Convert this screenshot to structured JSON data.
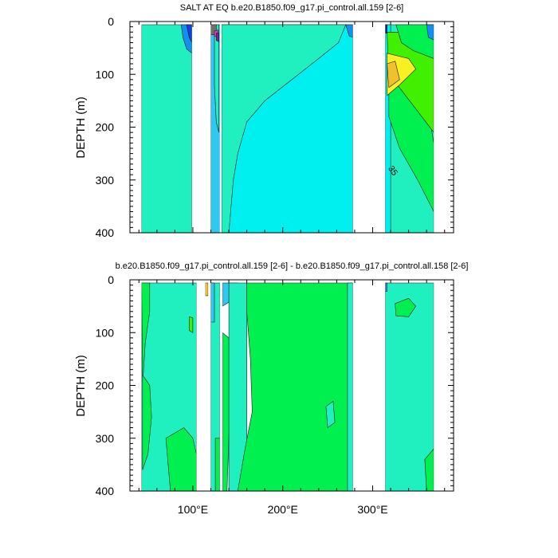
{
  "colors": {
    "cyan": "#00f0f0",
    "aquamarine": "#20f0c0",
    "green": "#00f050",
    "brightgreen": "#40f000",
    "yellow": "#f8f020",
    "orange": "#f0c030",
    "sky": "#30c8f0",
    "midblue": "#1090f0",
    "blue": "#1040e8",
    "navy": "#101090",
    "purple": "#8020a0",
    "pink": "#e040c0",
    "gray": "#707070",
    "brown": "#c08020",
    "blank": "#ffffff"
  },
  "chart_data": [
    {
      "type": "contour",
      "title": "SALT AT EQ b.e20.B1850.f09_g17.pi_control.all.159 [2-6]",
      "ylabel": "DEPTH (m)",
      "xlabel": "",
      "xlim": [
        30,
        390
      ],
      "ylim": [
        0,
        400
      ],
      "y_reversed": true,
      "yticks": [
        0,
        100,
        200,
        300,
        400
      ],
      "ytick_labels": [
        "0",
        "100",
        "200",
        "300",
        "400"
      ],
      "xticks": [
        100,
        200,
        300
      ],
      "xtick_labels": [],
      "data_extent_x": [
        43,
        368
      ],
      "land_gaps_x": [
        [
          99,
          120
        ],
        [
          130,
          132
        ],
        [
          278,
          314
        ]
      ],
      "contour_labels": [
        {
          "text": "35",
          "x": 317,
          "depth": 278
        }
      ],
      "regions": [
        {
          "color": "aquamarine",
          "depth_pts": [
            [
              43,
              6
            ],
            [
              99,
              6
            ],
            [
              99,
              400
            ],
            [
              43,
              400
            ]
          ]
        },
        {
          "color": "midblue",
          "depth_pts": [
            [
              87,
              6
            ],
            [
              99,
              6
            ],
            [
              99,
              60
            ],
            [
              93,
              52
            ],
            [
              89,
              30
            ]
          ]
        },
        {
          "color": "blue",
          "depth_pts": [
            [
              93,
              6
            ],
            [
              99,
              6
            ],
            [
              99,
              40
            ],
            [
              96,
              30
            ]
          ]
        },
        {
          "color": "sky",
          "depth_pts": [
            [
              120,
              6
            ],
            [
              132,
              6
            ],
            [
              132,
              400
            ],
            [
              120,
              400
            ]
          ]
        },
        {
          "color": "aquamarine",
          "depth_pts": [
            [
              124,
              6
            ],
            [
              129,
              6
            ],
            [
              129,
              210
            ],
            [
              126,
              190
            ],
            [
              124,
              120
            ]
          ]
        },
        {
          "color": "gray",
          "depth_pts": [
            [
              120,
              6
            ],
            [
              126,
              6
            ],
            [
              126,
              25
            ],
            [
              120,
              25
            ]
          ]
        },
        {
          "color": "pink",
          "depth_pts": [
            [
              124,
              18
            ],
            [
              128,
              16
            ],
            [
              128,
              30
            ],
            [
              124,
              28
            ]
          ]
        },
        {
          "color": "purple",
          "depth_pts": [
            [
              126,
              22
            ],
            [
              129,
              22
            ],
            [
              129,
              38
            ],
            [
              126,
              36
            ]
          ]
        },
        {
          "color": "cyan",
          "depth_pts": [
            [
              132,
              6
            ],
            [
              278,
              6
            ],
            [
              278,
              400
            ],
            [
              132,
              400
            ]
          ]
        },
        {
          "color": "aquamarine",
          "depth_pts": [
            [
              132,
              6
            ],
            [
              270,
              6
            ],
            [
              262,
              40
            ],
            [
              240,
              70
            ],
            [
              210,
              110
            ],
            [
              180,
              150
            ],
            [
              160,
              190
            ],
            [
              150,
              250
            ],
            [
              145,
              300
            ],
            [
              140,
              400
            ],
            [
              132,
              400
            ]
          ]
        },
        {
          "color": "midblue",
          "depth_pts": [
            [
              270,
              6
            ],
            [
              278,
              6
            ],
            [
              278,
              30
            ],
            [
              274,
              28
            ]
          ]
        },
        {
          "color": "aquamarine",
          "depth_pts": [
            [
              314,
              6
            ],
            [
              368,
              6
            ],
            [
              368,
              400
            ],
            [
              314,
              400
            ]
          ]
        },
        {
          "color": "cyan",
          "depth_pts": [
            [
              314,
              6
            ],
            [
              320,
              6
            ],
            [
              320,
              400
            ],
            [
              314,
              400
            ]
          ]
        },
        {
          "color": "green",
          "depth_pts": [
            [
              318,
              60
            ],
            [
              340,
              90
            ],
            [
              360,
              150
            ],
            [
              368,
              230
            ],
            [
              368,
              360
            ],
            [
              350,
              300
            ],
            [
              330,
              240
            ],
            [
              318,
              180
            ]
          ]
        },
        {
          "color": "brightgreen",
          "depth_pts": [
            [
              316,
              20
            ],
            [
              368,
              20
            ],
            [
              368,
              210
            ],
            [
              350,
              170
            ],
            [
              332,
              130
            ],
            [
              318,
              100
            ]
          ]
        },
        {
          "color": "yellow",
          "depth_pts": [
            [
              316,
              60
            ],
            [
              340,
              70
            ],
            [
              348,
              90
            ],
            [
              330,
              120
            ],
            [
              316,
              140
            ]
          ]
        },
        {
          "color": "orange",
          "depth_pts": [
            [
              316,
              80
            ],
            [
              325,
              75
            ],
            [
              330,
              110
            ],
            [
              318,
              125
            ]
          ]
        },
        {
          "color": "green",
          "depth_pts": [
            [
              326,
              6
            ],
            [
              368,
              6
            ],
            [
              368,
              70
            ],
            [
              345,
              55
            ],
            [
              332,
              40
            ]
          ]
        },
        {
          "color": "midblue",
          "depth_pts": [
            [
              360,
              6
            ],
            [
              368,
              6
            ],
            [
              368,
              35
            ],
            [
              362,
              30
            ]
          ]
        },
        {
          "color": "navy",
          "depth_pts": [
            [
              314,
              6
            ],
            [
              316,
              6
            ],
            [
              316,
              22
            ],
            [
              314,
              22
            ]
          ]
        }
      ]
    },
    {
      "type": "contour",
      "title": "b.e20.B1850.f09_g17.pi_control.all.159 [2-6] - b.e20.B1850.f09_g17.pi_control.all.158 [2-6]",
      "ylabel": "DEPTH (m)",
      "xlabel": "",
      "xlim": [
        30,
        390
      ],
      "ylim": [
        0,
        400
      ],
      "y_reversed": true,
      "yticks": [
        0,
        100,
        200,
        300,
        400
      ],
      "ytick_labels": [
        "0",
        "100",
        "200",
        "300",
        "400"
      ],
      "xticks": [
        100,
        200,
        300
      ],
      "xtick_labels": [
        "100°E",
        "200°E",
        "300°E"
      ],
      "data_extent_x": [
        43,
        368
      ],
      "land_gaps_x": [
        [
          104,
          114
        ],
        [
          117,
          120
        ],
        [
          130,
          133
        ],
        [
          278,
          314
        ]
      ],
      "contour_labels": [],
      "regions": [
        {
          "color": "aquamarine",
          "depth_pts": [
            [
              43,
              6
            ],
            [
              104,
              6
            ],
            [
              104,
              400
            ],
            [
              43,
              400
            ]
          ]
        },
        {
          "color": "green",
          "depth_pts": [
            [
              43,
              6
            ],
            [
              52,
              6
            ],
            [
              52,
              60
            ],
            [
              47,
              120
            ],
            [
              44,
              200
            ]
          ]
        },
        {
          "color": "green",
          "depth_pts": [
            [
              44,
              180
            ],
            [
              52,
              200
            ],
            [
              54,
              260
            ],
            [
              50,
              330
            ],
            [
              44,
              360
            ]
          ]
        },
        {
          "color": "green",
          "depth_pts": [
            [
              70,
              300
            ],
            [
              90,
              280
            ],
            [
              100,
              300
            ],
            [
              104,
              330
            ],
            [
              104,
              400
            ],
            [
              75,
              400
            ]
          ]
        },
        {
          "color": "brightgreen",
          "depth_pts": [
            [
              96,
              70
            ],
            [
              100,
              72
            ],
            [
              100,
              100
            ],
            [
              96,
              96
            ]
          ]
        },
        {
          "color": "orange",
          "depth_pts": [
            [
              114,
              6
            ],
            [
              117,
              6
            ],
            [
              117,
              30
            ],
            [
              114,
              30
            ]
          ]
        },
        {
          "color": "aquamarine",
          "depth_pts": [
            [
              120,
              6
            ],
            [
              130,
              6
            ],
            [
              130,
              400
            ],
            [
              120,
              400
            ]
          ]
        },
        {
          "color": "sky",
          "depth_pts": [
            [
              120,
              6
            ],
            [
              124,
              6
            ],
            [
              124,
              80
            ],
            [
              120,
              80
            ]
          ]
        },
        {
          "color": "green",
          "depth_pts": [
            [
              125,
              300
            ],
            [
              130,
              300
            ],
            [
              130,
              400
            ],
            [
              125,
              400
            ]
          ]
        },
        {
          "color": "green",
          "depth_pts": [
            [
              133,
              100
            ],
            [
              140,
              110
            ],
            [
              142,
              200
            ],
            [
              138,
              400
            ],
            [
              133,
              400
            ]
          ]
        },
        {
          "color": "sky",
          "depth_pts": [
            [
              133,
              6
            ],
            [
              150,
              6
            ],
            [
              142,
              40
            ],
            [
              133,
              50
            ]
          ]
        },
        {
          "color": "aquamarine",
          "depth_pts": [
            [
              140,
              6
            ],
            [
              160,
              6
            ],
            [
              160,
              400
            ],
            [
              140,
              400
            ]
          ]
        },
        {
          "color": "green",
          "depth_pts": [
            [
              160,
              6
            ],
            [
              278,
              6
            ],
            [
              278,
              400
            ],
            [
              150,
              400
            ],
            [
              158,
              320
            ],
            [
              166,
              250
            ],
            [
              164,
              150
            ],
            [
              160,
              60
            ]
          ]
        },
        {
          "color": "aquamarine",
          "depth_pts": [
            [
              248,
              240
            ],
            [
              256,
              230
            ],
            [
              258,
              270
            ],
            [
              250,
              280
            ]
          ]
        },
        {
          "color": "aquamarine",
          "depth_pts": [
            [
              272,
              6
            ],
            [
              278,
              6
            ],
            [
              278,
              400
            ],
            [
              272,
              400
            ]
          ]
        },
        {
          "color": "aquamarine",
          "depth_pts": [
            [
              314,
              6
            ],
            [
              368,
              6
            ],
            [
              368,
              400
            ],
            [
              314,
              400
            ]
          ]
        },
        {
          "color": "green",
          "depth_pts": [
            [
              325,
              45
            ],
            [
              340,
              35
            ],
            [
              348,
              50
            ],
            [
              340,
              70
            ],
            [
              326,
              68
            ]
          ]
        },
        {
          "color": "green",
          "depth_pts": [
            [
              358,
              340
            ],
            [
              368,
              320
            ],
            [
              368,
              400
            ],
            [
              360,
              400
            ]
          ]
        },
        {
          "color": "midblue",
          "depth_pts": [
            [
              314,
              6
            ],
            [
              316,
              6
            ],
            [
              316,
              22
            ],
            [
              314,
              22
            ]
          ]
        }
      ]
    }
  ]
}
